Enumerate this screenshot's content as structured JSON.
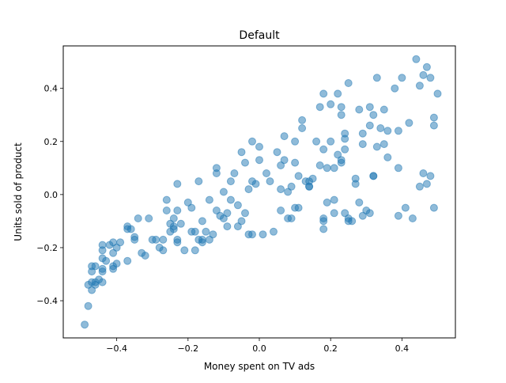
{
  "chart_data": {
    "type": "scatter",
    "title": "Default",
    "xlabel": "Money spent on TV ads",
    "ylabel": "Units sold of product",
    "xlim": [
      -0.55,
      0.55
    ],
    "ylim": [
      -0.54,
      0.56
    ],
    "xticks": [
      -0.4,
      -0.2,
      0.0,
      0.2,
      0.4
    ],
    "xtick_labels": [
      "−0.4",
      "−0.2",
      "0.0",
      "0.2",
      "0.4"
    ],
    "yticks": [
      -0.4,
      -0.2,
      0.0,
      0.2,
      0.4
    ],
    "ytick_labels": [
      "−0.4",
      "−0.2",
      "0.0",
      "0.2",
      "0.4"
    ],
    "grid": false,
    "series": [
      {
        "color": "#1f77b4",
        "alpha": 0.5,
        "points": [
          [
            -0.49,
            -0.49
          ],
          [
            -0.48,
            -0.42
          ],
          [
            -0.48,
            -0.34
          ],
          [
            -0.47,
            -0.33
          ],
          [
            -0.47,
            -0.29
          ],
          [
            -0.47,
            -0.36
          ],
          [
            -0.47,
            -0.27
          ],
          [
            -0.46,
            -0.34
          ],
          [
            -0.46,
            -0.33
          ],
          [
            -0.46,
            -0.27
          ],
          [
            -0.45,
            -0.32
          ],
          [
            -0.44,
            -0.24
          ],
          [
            -0.44,
            -0.19
          ],
          [
            -0.44,
            -0.29
          ],
          [
            -0.44,
            -0.33
          ],
          [
            -0.44,
            -0.21
          ],
          [
            -0.44,
            -0.28
          ],
          [
            -0.43,
            -0.25
          ],
          [
            -0.42,
            -0.19
          ],
          [
            -0.41,
            -0.18
          ],
          [
            -0.41,
            -0.22
          ],
          [
            -0.41,
            -0.27
          ],
          [
            -0.41,
            -0.28
          ],
          [
            -0.4,
            -0.26
          ],
          [
            -0.4,
            -0.2
          ],
          [
            -0.39,
            -0.18
          ],
          [
            -0.37,
            -0.12
          ],
          [
            -0.37,
            -0.13
          ],
          [
            -0.37,
            -0.25
          ],
          [
            -0.36,
            -0.13
          ],
          [
            -0.35,
            -0.16
          ],
          [
            -0.35,
            -0.17
          ],
          [
            -0.34,
            -0.09
          ],
          [
            -0.33,
            -0.22
          ],
          [
            -0.32,
            -0.23
          ],
          [
            -0.31,
            -0.09
          ],
          [
            -0.3,
            -0.17
          ],
          [
            -0.29,
            -0.17
          ],
          [
            -0.28,
            -0.2
          ],
          [
            -0.27,
            -0.17
          ],
          [
            -0.27,
            -0.21
          ],
          [
            -0.26,
            -0.06
          ],
          [
            -0.26,
            -0.02
          ],
          [
            -0.25,
            -0.11
          ],
          [
            -0.25,
            -0.14
          ],
          [
            -0.24,
            -0.13
          ],
          [
            -0.24,
            -0.12
          ],
          [
            -0.24,
            -0.09
          ],
          [
            -0.23,
            -0.06
          ],
          [
            -0.23,
            -0.17
          ],
          [
            -0.23,
            0.04
          ],
          [
            -0.23,
            -0.18
          ],
          [
            -0.22,
            -0.11
          ],
          [
            -0.21,
            -0.21
          ],
          [
            -0.2,
            -0.03
          ],
          [
            -0.19,
            -0.05
          ],
          [
            -0.19,
            -0.14
          ],
          [
            -0.18,
            -0.14
          ],
          [
            -0.18,
            -0.21
          ],
          [
            -0.17,
            -0.17
          ],
          [
            -0.17,
            0.05
          ],
          [
            -0.16,
            -0.18
          ],
          [
            -0.16,
            -0.17
          ],
          [
            -0.16,
            -0.1
          ],
          [
            -0.15,
            -0.14
          ],
          [
            -0.14,
            -0.02
          ],
          [
            -0.13,
            -0.15
          ],
          [
            -0.12,
            -0.06
          ],
          [
            -0.12,
            0.1
          ],
          [
            -0.12,
            0.08
          ],
          [
            -0.11,
            -0.08
          ],
          [
            -0.1,
            -0.09
          ],
          [
            -0.1,
            0.01
          ],
          [
            -0.09,
            -0.07
          ],
          [
            -0.09,
            -0.12
          ],
          [
            -0.08,
            0.05
          ],
          [
            -0.08,
            -0.02
          ],
          [
            -0.07,
            0.08
          ],
          [
            -0.06,
            -0.12
          ],
          [
            -0.06,
            -0.04
          ],
          [
            -0.05,
            0.16
          ],
          [
            -0.05,
            -0.1
          ],
          [
            -0.04,
            0.12
          ],
          [
            -0.04,
            -0.07
          ],
          [
            -0.03,
            0.02
          ],
          [
            -0.03,
            -0.15
          ],
          [
            -0.02,
            0.05
          ],
          [
            -0.02,
            0.2
          ],
          [
            -0.02,
            -0.15
          ],
          [
            -0.01,
            0.04
          ],
          [
            0.0,
            0.13
          ],
          [
            0.0,
            0.18
          ],
          [
            0.01,
            -0.15
          ],
          [
            0.02,
            0.08
          ],
          [
            0.03,
            0.05
          ],
          [
            0.04,
            -0.14
          ],
          [
            0.05,
            0.16
          ],
          [
            0.06,
            0.02
          ],
          [
            0.06,
            0.11
          ],
          [
            0.06,
            -0.06
          ],
          [
            0.07,
            0.22
          ],
          [
            0.07,
            0.13
          ],
          [
            0.08,
            -0.09
          ],
          [
            0.08,
            0.01
          ],
          [
            0.09,
            0.03
          ],
          [
            0.09,
            -0.09
          ],
          [
            0.1,
            0.12
          ],
          [
            0.1,
            0.2
          ],
          [
            0.1,
            -0.05
          ],
          [
            0.11,
            0.07
          ],
          [
            0.11,
            -0.05
          ],
          [
            0.12,
            0.28
          ],
          [
            0.12,
            0.25
          ],
          [
            0.13,
            0.05
          ],
          [
            0.14,
            0.05
          ],
          [
            0.14,
            0.03
          ],
          [
            0.14,
            0.03
          ],
          [
            0.15,
            0.06
          ],
          [
            0.16,
            0.2
          ],
          [
            0.17,
            0.11
          ],
          [
            0.17,
            0.33
          ],
          [
            0.18,
            0.38
          ],
          [
            0.18,
            0.17
          ],
          [
            0.18,
            -0.09
          ],
          [
            0.18,
            -0.13
          ],
          [
            0.18,
            -0.1
          ],
          [
            0.19,
            0.1
          ],
          [
            0.19,
            -0.03
          ],
          [
            0.2,
            0.2
          ],
          [
            0.2,
            0.34
          ],
          [
            0.21,
            0.1
          ],
          [
            0.21,
            -0.07
          ],
          [
            0.21,
            -0.02
          ],
          [
            0.22,
            0.38
          ],
          [
            0.22,
            0.15
          ],
          [
            0.23,
            0.12
          ],
          [
            0.23,
            0.33
          ],
          [
            0.23,
            0.13
          ],
          [
            0.23,
            0.3
          ],
          [
            0.24,
            0.17
          ],
          [
            0.24,
            0.21
          ],
          [
            0.24,
            0.23
          ],
          [
            0.24,
            -0.07
          ],
          [
            0.25,
            0.42
          ],
          [
            0.25,
            -0.09
          ],
          [
            0.25,
            -0.1
          ],
          [
            0.26,
            -0.1
          ],
          [
            0.27,
            0.04
          ],
          [
            0.27,
            0.06
          ],
          [
            0.28,
            0.32
          ],
          [
            0.28,
            -0.03
          ],
          [
            0.29,
            0.23
          ],
          [
            0.29,
            -0.08
          ],
          [
            0.29,
            0.19
          ],
          [
            0.3,
            -0.06
          ],
          [
            0.31,
            0.33
          ],
          [
            0.31,
            0.26
          ],
          [
            0.31,
            -0.07
          ],
          [
            0.32,
            0.3
          ],
          [
            0.32,
            0.07
          ],
          [
            0.32,
            0.07
          ],
          [
            0.33,
            0.44
          ],
          [
            0.33,
            0.18
          ],
          [
            0.34,
            0.25
          ],
          [
            0.35,
            0.32
          ],
          [
            0.35,
            0.19
          ],
          [
            0.36,
            0.24
          ],
          [
            0.36,
            0.14
          ],
          [
            0.38,
            0.4
          ],
          [
            0.39,
            0.1
          ],
          [
            0.39,
            0.24
          ],
          [
            0.4,
            0.44
          ],
          [
            0.41,
            -0.05
          ],
          [
            0.42,
            0.27
          ],
          [
            0.43,
            -0.09
          ],
          [
            0.44,
            0.51
          ],
          [
            0.45,
            0.41
          ],
          [
            0.45,
            0.03
          ],
          [
            0.46,
            0.08
          ],
          [
            0.46,
            0.45
          ],
          [
            0.47,
            0.48
          ],
          [
            0.47,
            0.04
          ],
          [
            0.48,
            0.07
          ],
          [
            0.48,
            0.44
          ],
          [
            0.49,
            -0.05
          ],
          [
            0.49,
            0.29
          ],
          [
            0.49,
            0.26
          ],
          [
            0.5,
            0.38
          ],
          [
            -0.14,
            -0.17
          ],
          [
            0.39,
            -0.08
          ]
        ]
      }
    ]
  }
}
